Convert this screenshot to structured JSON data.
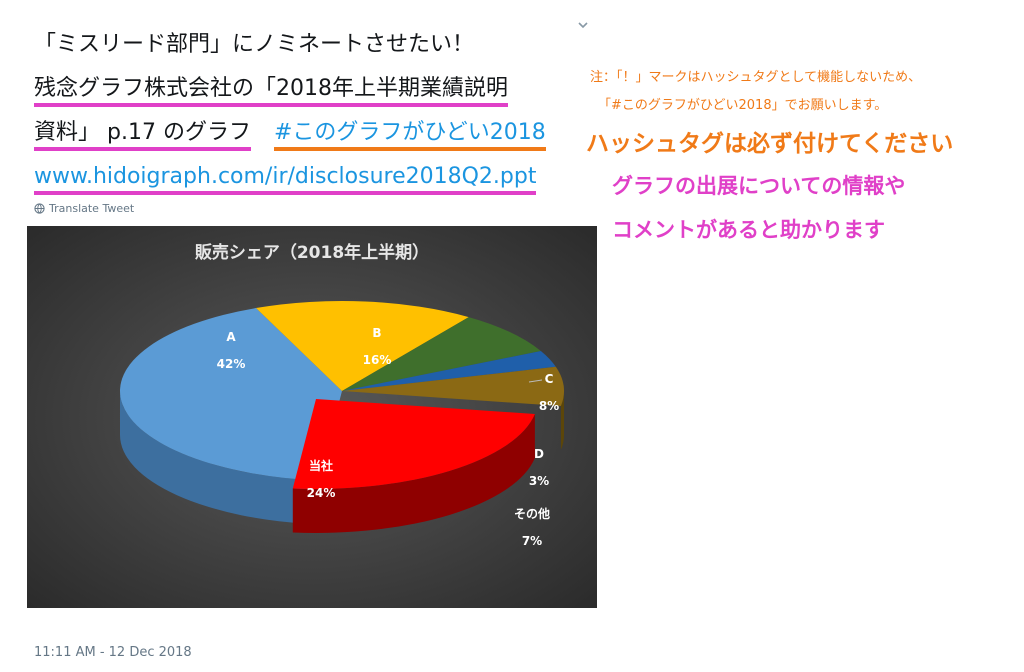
{
  "tweet": {
    "line1": "「ミスリード部門」にノミネートさせたい！",
    "line2": "残念グラフ株式会社の「2018年上半期業績説明",
    "line3_text": "資料」 p.17 のグラフ",
    "hashtag": "#このグラフがひどい2018",
    "url": "www.hidoigraph.com/ir/disclosure2018Q2.ppt",
    "translate": "Translate Tweet",
    "timestamp": "11:11 AM - 12 Dec 2018"
  },
  "annotations": {
    "note_line1": "注：「！」マークはハッシュタグとして機能しないため、",
    "note_line2": "「#このグラフがひどい2018」でお願いします。",
    "hashtag_reminder": "ハッシュタグは必ず付けてください",
    "request_line1": "グラフの出展についての情報や",
    "request_line2": "コメントがあると助かります"
  },
  "colors": {
    "pink": "#e040c8",
    "orange": "#f07a18",
    "link": "#1b95e0"
  },
  "chart_data": {
    "type": "pie",
    "title": "販売シェア（2018年上半期）",
    "categories": [
      "A",
      "B",
      "C",
      "D",
      "当社",
      "その他"
    ],
    "values": [
      42,
      16,
      8,
      3,
      24,
      7
    ],
    "labels": {
      "A": "A",
      "A_pct": "42%",
      "B": "B",
      "B_pct": "16%",
      "C": "C",
      "C_pct": "8%",
      "D": "D",
      "D_pct": "3%",
      "ours": "当社",
      "ours_pct": "24%",
      "other": "その他",
      "other_pct": "7%"
    }
  }
}
